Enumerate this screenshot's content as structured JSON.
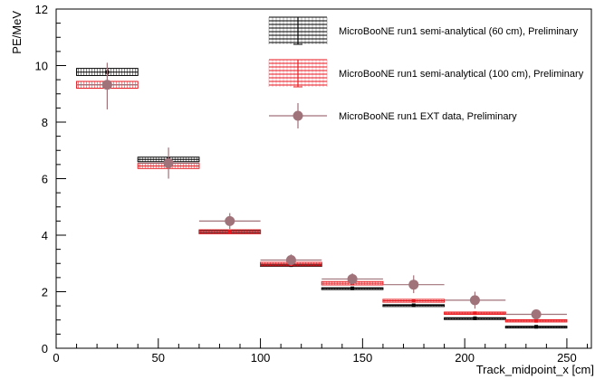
{
  "chart_data": {
    "type": "scatter",
    "xlabel": "Track_midpoint_x [cm]",
    "ylabel": "PE/MeV",
    "xlim": [
      0,
      262
    ],
    "ylim": [
      0,
      12
    ],
    "x_ticks": [
      0,
      50,
      100,
      150,
      200,
      250
    ],
    "y_ticks": [
      0,
      2,
      4,
      6,
      8,
      10,
      12
    ],
    "grid": false,
    "legend_position": "top-right",
    "series": [
      {
        "name": "MicroBooNE run1 semi-analytical (60 cm), Preliminary",
        "style": "box",
        "color": "#000000",
        "bins": [
          {
            "x_low": 10,
            "x_high": 40,
            "y": 9.77,
            "box_low": 9.65,
            "box_high": 9.9,
            "err_low": 9.65,
            "err_high": 9.9
          },
          {
            "x_low": 40,
            "x_high": 70,
            "y": 6.68,
            "box_low": 6.6,
            "box_high": 6.76,
            "err_low": 6.6,
            "err_high": 6.76
          },
          {
            "x_low": 70,
            "x_high": 100,
            "y": 4.12,
            "box_low": 4.07,
            "box_high": 4.17,
            "err_low": 4.07,
            "err_high": 4.17
          },
          {
            "x_low": 100,
            "x_high": 130,
            "y": 2.94,
            "box_low": 2.9,
            "box_high": 2.98,
            "err_low": 2.9,
            "err_high": 2.98
          },
          {
            "x_low": 130,
            "x_high": 160,
            "y": 2.12,
            "box_low": 2.1,
            "box_high": 2.14,
            "err_low": 2.1,
            "err_high": 2.14
          },
          {
            "x_low": 160,
            "x_high": 190,
            "y": 1.52,
            "box_low": 1.5,
            "box_high": 1.54,
            "err_low": 1.5,
            "err_high": 1.54
          },
          {
            "x_low": 190,
            "x_high": 220,
            "y": 1.06,
            "box_low": 1.04,
            "box_high": 1.08,
            "err_low": 1.04,
            "err_high": 1.08
          },
          {
            "x_low": 220,
            "x_high": 250,
            "y": 0.76,
            "box_low": 0.74,
            "box_high": 0.78,
            "err_low": 0.74,
            "err_high": 0.78
          }
        ]
      },
      {
        "name": "MicroBooNE run1 semi-analytical (100 cm), Preliminary",
        "style": "box",
        "color": "#e8191f",
        "bins": [
          {
            "x_low": 10,
            "x_high": 40,
            "y": 9.32,
            "box_low": 9.2,
            "box_high": 9.44,
            "err_low": 9.2,
            "err_high": 9.44
          },
          {
            "x_low": 40,
            "x_high": 70,
            "y": 6.45,
            "box_low": 6.36,
            "box_high": 6.54,
            "err_low": 6.36,
            "err_high": 6.54
          },
          {
            "x_low": 70,
            "x_high": 100,
            "y": 4.12,
            "box_low": 4.05,
            "box_high": 4.19,
            "err_low": 4.05,
            "err_high": 4.19
          },
          {
            "x_low": 100,
            "x_high": 130,
            "y": 2.98,
            "box_low": 2.92,
            "box_high": 3.04,
            "err_low": 2.92,
            "err_high": 3.04
          },
          {
            "x_low": 130,
            "x_high": 160,
            "y": 2.3,
            "box_low": 2.24,
            "box_high": 2.36,
            "err_low": 2.24,
            "err_high": 2.36
          },
          {
            "x_low": 160,
            "x_high": 190,
            "y": 1.68,
            "box_low": 1.63,
            "box_high": 1.73,
            "err_low": 1.63,
            "err_high": 1.73
          },
          {
            "x_low": 190,
            "x_high": 220,
            "y": 1.24,
            "box_low": 1.2,
            "box_high": 1.28,
            "err_low": 1.2,
            "err_high": 1.28
          },
          {
            "x_low": 220,
            "x_high": 250,
            "y": 0.97,
            "box_low": 0.93,
            "box_high": 1.01,
            "err_low": 0.93,
            "err_high": 1.01
          }
        ]
      },
      {
        "name": "MicroBooNE run1 EXT data, Preliminary",
        "style": "marker",
        "color": "#a0727a",
        "bins": [
          {
            "x_low": 10,
            "x_high": 40,
            "y": 9.32,
            "err_low": 8.45,
            "err_high": 10.1
          },
          {
            "x_low": 40,
            "x_high": 70,
            "y": 6.55,
            "err_low": 6.0,
            "err_high": 7.1
          },
          {
            "x_low": 70,
            "x_high": 100,
            "y": 4.5,
            "err_low": 4.22,
            "err_high": 4.78
          },
          {
            "x_low": 100,
            "x_high": 130,
            "y": 3.12,
            "err_low": 2.92,
            "err_high": 3.32
          },
          {
            "x_low": 130,
            "x_high": 160,
            "y": 2.45,
            "err_low": 2.25,
            "err_high": 2.65
          },
          {
            "x_low": 160,
            "x_high": 190,
            "y": 2.25,
            "err_low": 1.95,
            "err_high": 2.58
          },
          {
            "x_low": 190,
            "x_high": 220,
            "y": 1.7,
            "err_low": 1.4,
            "err_high": 2.0
          },
          {
            "x_low": 220,
            "x_high": 250,
            "y": 1.2,
            "err_low": 1.1,
            "err_high": 1.3
          }
        ]
      }
    ]
  }
}
